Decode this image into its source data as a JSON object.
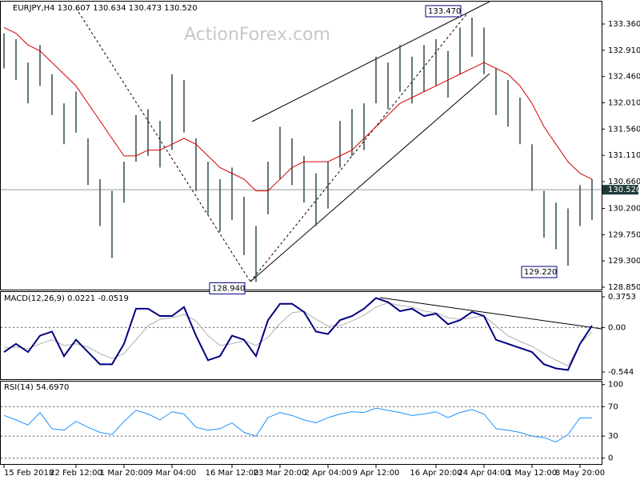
{
  "chart_data": [
    {
      "type": "ohlc",
      "title": "EURJPY,H4  130.607 130.634 130.473 130.520",
      "watermark": "ActionForex.com",
      "categories": [
        "15 Feb 2018",
        null,
        null,
        null,
        null,
        null,
        "22 Feb 12:00",
        null,
        null,
        null,
        "1 Mar 20:00",
        null,
        null,
        null,
        "9 Mar 04:00",
        null,
        null,
        null,
        null,
        "16 Mar 12:00",
        null,
        null,
        null,
        "23 Mar 20:00",
        null,
        null,
        null,
        "2 Apr 04:00",
        null,
        null,
        null,
        "9 Apr 12:00",
        null,
        null,
        null,
        null,
        "16 Apr 20:00",
        null,
        null,
        null,
        "24 Apr 04:00",
        null,
        null,
        null,
        "1 May 12:00",
        null,
        null,
        null,
        "8 May 20:00",
        null
      ],
      "series": [
        {
          "name": "High",
          "color": "#2e4a4a",
          "values": [
            133.2,
            133.1,
            132.7,
            133.0,
            132.5,
            132.0,
            132.2,
            131.4,
            130.7,
            130.5,
            131.0,
            131.8,
            131.9,
            131.7,
            132.5,
            132.4,
            131.4,
            131.0,
            130.7,
            130.9,
            130.4,
            129.9,
            131.0,
            131.6,
            131.4,
            131.1,
            130.8,
            131.0,
            131.7,
            131.9,
            132.0,
            132.8,
            132.7,
            133.0,
            132.8,
            133.0,
            133.1,
            132.9,
            133.3,
            133.47,
            133.3,
            132.6,
            132.4,
            132.1,
            131.3,
            130.5,
            130.3,
            130.2,
            130.6,
            130.7
          ]
        },
        {
          "name": "Low",
          "color": "#2e4a4a",
          "values": [
            132.6,
            132.4,
            132.0,
            132.3,
            131.8,
            131.3,
            131.5,
            130.6,
            129.9,
            129.35,
            130.3,
            131.0,
            131.1,
            130.9,
            131.2,
            131.5,
            130.5,
            130.1,
            129.8,
            130.0,
            129.4,
            128.94,
            130.1,
            130.7,
            130.6,
            130.3,
            129.9,
            130.2,
            130.9,
            131.1,
            131.2,
            132.0,
            131.9,
            132.2,
            132.0,
            132.2,
            132.3,
            132.1,
            132.5,
            132.8,
            132.5,
            131.8,
            131.6,
            131.3,
            130.5,
            129.7,
            129.5,
            129.22,
            129.9,
            130.0
          ]
        },
        {
          "name": "MA",
          "color": "#d40000",
          "values": [
            133.3,
            133.2,
            133.0,
            132.9,
            132.7,
            132.5,
            132.3,
            132.0,
            131.7,
            131.4,
            131.1,
            131.1,
            131.2,
            131.2,
            131.3,
            131.4,
            131.3,
            131.1,
            130.9,
            130.8,
            130.7,
            130.5,
            130.5,
            130.7,
            130.9,
            131.0,
            131.0,
            131.0,
            131.1,
            131.2,
            131.4,
            131.6,
            131.8,
            132.0,
            132.1,
            132.2,
            132.3,
            132.4,
            132.5,
            132.6,
            132.7,
            132.6,
            132.5,
            132.3,
            132.0,
            131.6,
            131.3,
            131.0,
            130.8,
            130.7
          ]
        }
      ],
      "current": {
        "value": 130.52,
        "label": "130.520"
      },
      "annotations": [
        {
          "value": 133.47,
          "label": "133.470"
        },
        {
          "value": 128.94,
          "label": "128.940"
        },
        {
          "value": 129.22,
          "label": "129.220"
        }
      ],
      "ylim": [
        128.809,
        133.744
      ],
      "yticks": [
        {
          "value": 133.36,
          "label": "133.360"
        },
        {
          "value": 132.91,
          "label": "132.910"
        },
        {
          "value": 132.46,
          "label": "132.460"
        },
        {
          "value": 132.01,
          "label": "132.010"
        },
        {
          "value": 131.56,
          "label": "131.560"
        },
        {
          "value": 131.11,
          "label": "131.110"
        },
        {
          "value": 130.66,
          "label": "130.660"
        },
        {
          "value": 130.2,
          "label": "130.200"
        },
        {
          "value": 129.75,
          "label": "129.750"
        },
        {
          "value": 129.3,
          "label": "129.300"
        },
        {
          "value": 128.85,
          "label": "128.850"
        }
      ]
    },
    {
      "type": "line",
      "title": "MACD(12,26,9) 0.0221 -0.0519",
      "series": [
        {
          "name": "MACD",
          "color": "#000080",
          "values": [
            -0.3,
            -0.2,
            -0.3,
            -0.1,
            -0.05,
            -0.35,
            -0.15,
            -0.3,
            -0.45,
            -0.45,
            -0.2,
            0.23,
            0.23,
            0.14,
            0.14,
            0.25,
            -0.1,
            -0.4,
            -0.35,
            -0.1,
            -0.15,
            -0.35,
            0.09,
            0.29,
            0.29,
            0.19,
            -0.05,
            -0.08,
            0.09,
            0.14,
            0.23,
            0.36,
            0.31,
            0.2,
            0.23,
            0.14,
            0.17,
            0.04,
            0.09,
            0.19,
            0.14,
            -0.15,
            -0.2,
            -0.25,
            -0.3,
            -0.45,
            -0.5,
            -0.52,
            -0.2,
            0.0221
          ]
        },
        {
          "name": "Signal",
          "color": "#b0b0b0",
          "values": [
            -0.25,
            -0.24,
            -0.26,
            -0.2,
            -0.15,
            -0.22,
            -0.2,
            -0.24,
            -0.32,
            -0.38,
            -0.32,
            -0.15,
            0.02,
            0.1,
            0.12,
            0.16,
            0.08,
            -0.1,
            -0.22,
            -0.2,
            -0.16,
            -0.22,
            -0.12,
            0.05,
            0.18,
            0.2,
            0.1,
            0.02,
            0.02,
            0.08,
            0.15,
            0.25,
            0.3,
            0.27,
            0.25,
            0.2,
            0.18,
            0.12,
            0.1,
            0.12,
            0.14,
            0.02,
            -0.1,
            -0.17,
            -0.23,
            -0.32,
            -0.4,
            -0.47,
            -0.2,
            -0.0519
          ]
        }
      ],
      "ylim": [
        -0.642,
        0.434
      ],
      "yticks": [
        0.3753,
        {
          "value": 0,
          "label": "0.00"
        },
        -0.544
      ]
    },
    {
      "type": "line",
      "title": "RSI(14) 54.6970",
      "series": [
        {
          "name": "RSI",
          "color": "#1e90ff",
          "values": [
            58,
            52,
            45,
            62,
            40,
            38,
            50,
            42,
            35,
            32,
            50,
            65,
            60,
            52,
            63,
            60,
            42,
            38,
            40,
            48,
            35,
            30,
            55,
            62,
            58,
            52,
            48,
            55,
            60,
            63,
            62,
            68,
            65,
            62,
            58,
            60,
            63,
            55,
            62,
            66,
            60,
            40,
            38,
            35,
            30,
            28,
            22,
            32,
            55,
            54.697
          ]
        }
      ],
      "ylim": [
        -9,
        104
      ],
      "yticks": [
        100,
        70,
        30,
        0
      ]
    }
  ]
}
